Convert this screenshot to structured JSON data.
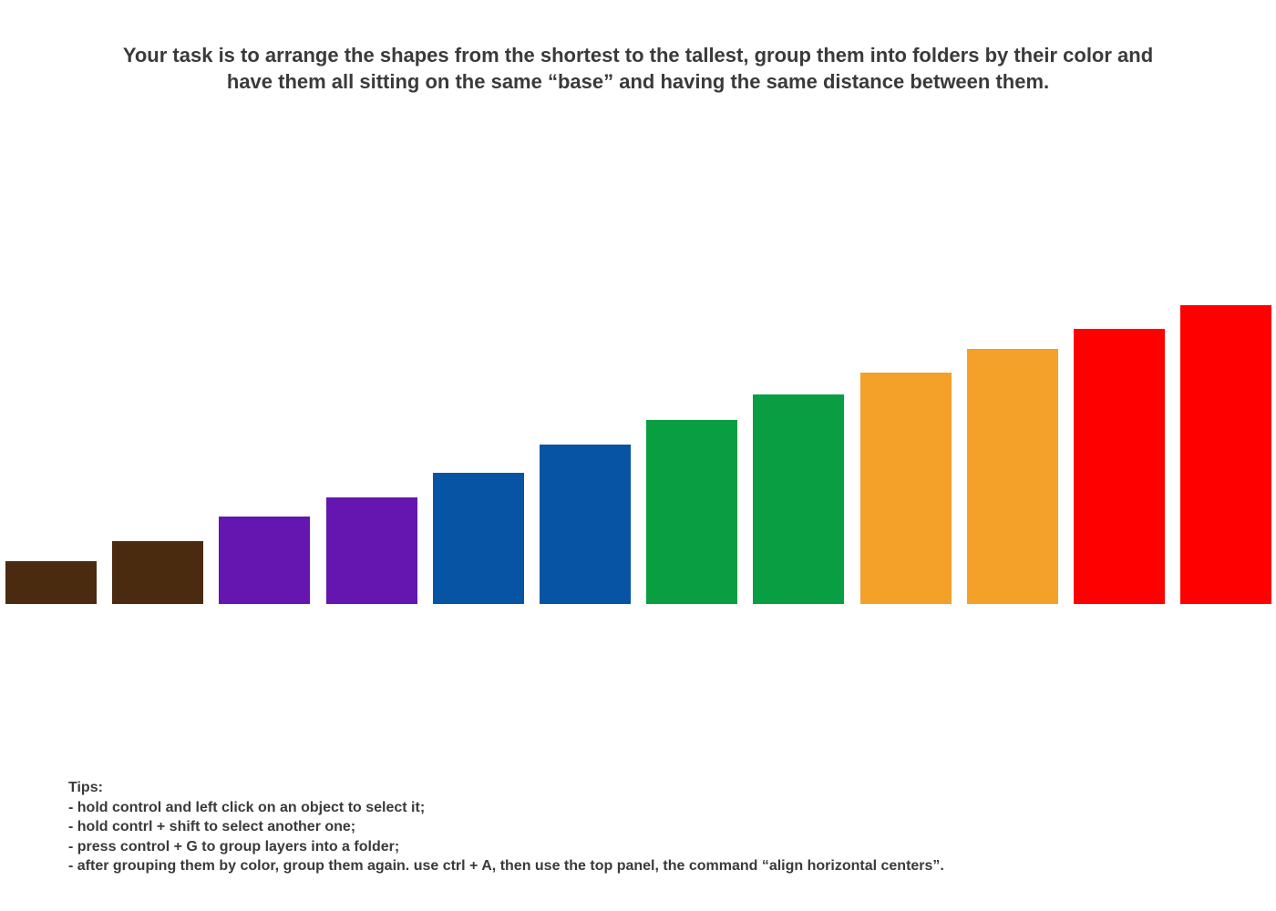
{
  "instructions": {
    "line1": "Your task is to arrange the shapes from the shortest to the tallest, group them into folders by their color and",
    "line2": "have them all sitting on the same “base” and having the same distance between them."
  },
  "shapes": [
    {
      "name": "brown-shape-1",
      "color": "#4a2b10",
      "height_rank": 1
    },
    {
      "name": "brown-shape-2",
      "color": "#4a2b10",
      "height_rank": 2
    },
    {
      "name": "purple-shape-1",
      "color": "#6515b0",
      "height_rank": 3
    },
    {
      "name": "purple-shape-2",
      "color": "#6515b0",
      "height_rank": 4
    },
    {
      "name": "blue-shape-1",
      "color": "#0654a3",
      "height_rank": 5
    },
    {
      "name": "blue-shape-2",
      "color": "#0654a3",
      "height_rank": 6
    },
    {
      "name": "green-shape-1",
      "color": "#0a9e43",
      "height_rank": 7
    },
    {
      "name": "green-shape-2",
      "color": "#0a9e43",
      "height_rank": 8
    },
    {
      "name": "orange-shape-1",
      "color": "#f3a128",
      "height_rank": 9
    },
    {
      "name": "orange-shape-2",
      "color": "#f3a128",
      "height_rank": 10
    },
    {
      "name": "red-shape-1",
      "color": "#ff0000",
      "height_rank": 11
    },
    {
      "name": "red-shape-2",
      "color": "#ff0000",
      "height_rank": 12
    }
  ],
  "tips": {
    "heading": "Tips:",
    "items": [
      "- hold control and left click on an object to select it;",
      "- hold contrl + shift to select another one;",
      "- press control + G to group layers into a folder;",
      "- after grouping them by color, group them again. use ctrl + A, then use the top panel, the command “align horizontal centers”."
    ]
  }
}
